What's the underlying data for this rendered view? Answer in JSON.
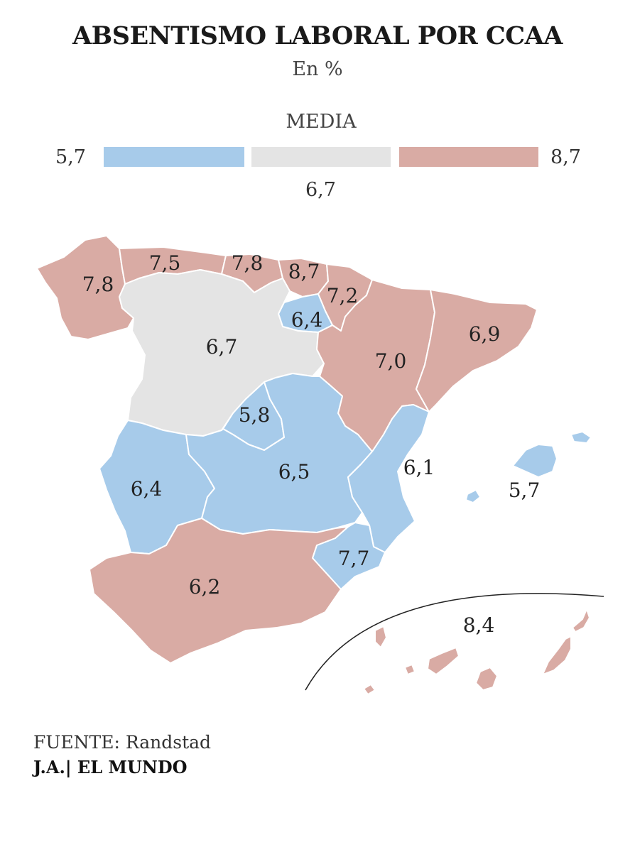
{
  "title": "ABSENTISMO LABORAL POR CCAA",
  "subtitle": "En %",
  "legend": {
    "title": "MEDIA",
    "min": "5,7",
    "avg": "6,7",
    "max": "8,7",
    "colors": {
      "low": "#a7cbea",
      "mid": "#e4e4e4",
      "high": "#d9aba4"
    }
  },
  "regions": [
    {
      "name": "Galicia",
      "value": "7,8",
      "color": "#d9aba4"
    },
    {
      "name": "Asturias",
      "value": "7,5",
      "color": "#d9aba4"
    },
    {
      "name": "Cantabria",
      "value": "7,8",
      "color": "#d9aba4"
    },
    {
      "name": "País Vasco",
      "value": "8,7",
      "color": "#d9aba4"
    },
    {
      "name": "Navarra",
      "value": "7,2",
      "color": "#d9aba4"
    },
    {
      "name": "La Rioja",
      "value": "6,4",
      "color": "#a7cbea"
    },
    {
      "name": "Castilla y León",
      "value": "6,7",
      "color": "#e4e4e4"
    },
    {
      "name": "Aragón",
      "value": "7,0",
      "color": "#d9aba4"
    },
    {
      "name": "Cataluña",
      "value": "6,9",
      "color": "#d9aba4"
    },
    {
      "name": "Madrid",
      "value": "5,8",
      "color": "#a7cbea"
    },
    {
      "name": "Extremadura",
      "value": "6,4",
      "color": "#a7cbea"
    },
    {
      "name": "Castilla-La Mancha",
      "value": "6,5",
      "color": "#a7cbea"
    },
    {
      "name": "Comunidad Valenciana",
      "value": "6,1",
      "color": "#a7cbea"
    },
    {
      "name": "Baleares",
      "value": "5,7",
      "color": "#a7cbea"
    },
    {
      "name": "Murcia",
      "value": "7,7",
      "color": "#d9aba4"
    },
    {
      "name": "Andalucía",
      "value": "6,2",
      "color": "#a7cbea"
    },
    {
      "name": "Canarias",
      "value": "8,4",
      "color": "#d9aba4"
    }
  ],
  "footer": {
    "source": "FUENTE: Randstad",
    "credit": "J.A.| EL MUNDO"
  }
}
